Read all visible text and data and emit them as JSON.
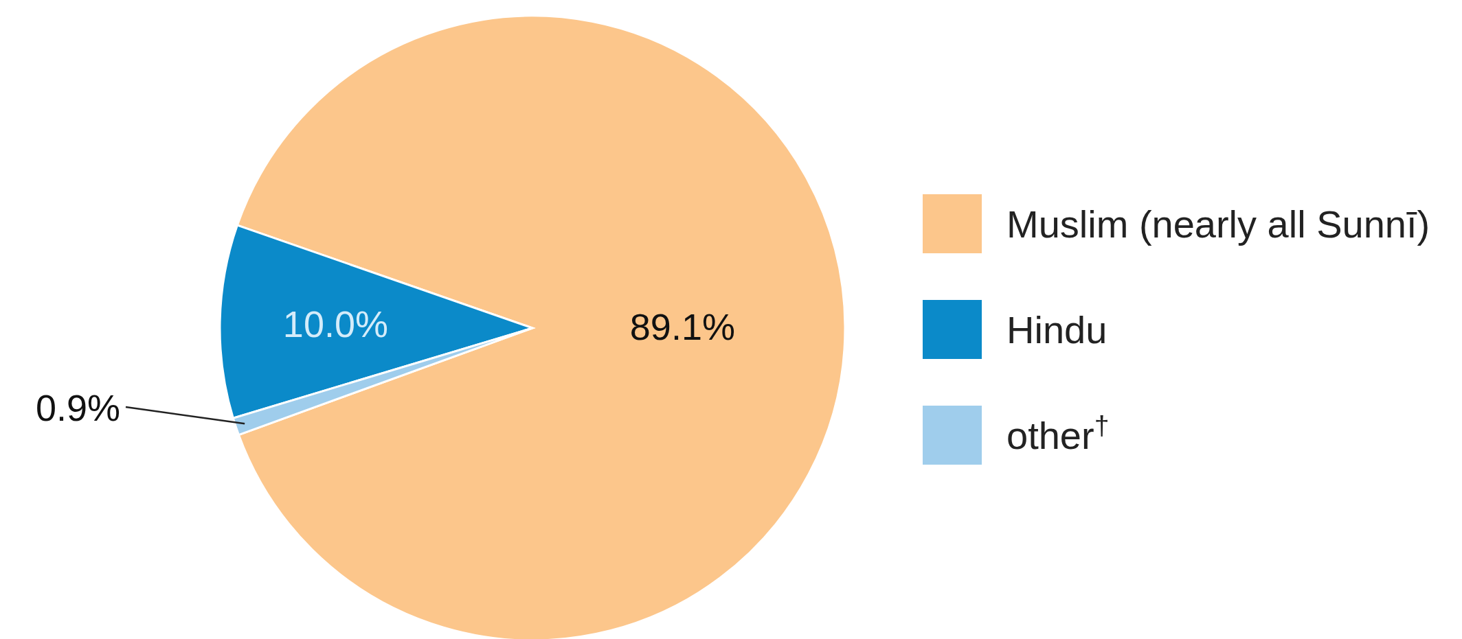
{
  "chart_data": {
    "type": "pie",
    "categories": [
      "Muslim (nearly all Sunnī)",
      "Hindu",
      "other$^{†}$"
    ],
    "values": [
      89.1,
      10.0,
      0.9
    ],
    "colors": [
      "#fcc68b",
      "#0b8ac9",
      "#9fcdec"
    ],
    "value_labels": [
      "89.1%",
      "10.0%",
      "0.9%"
    ],
    "legend": "right"
  }
}
